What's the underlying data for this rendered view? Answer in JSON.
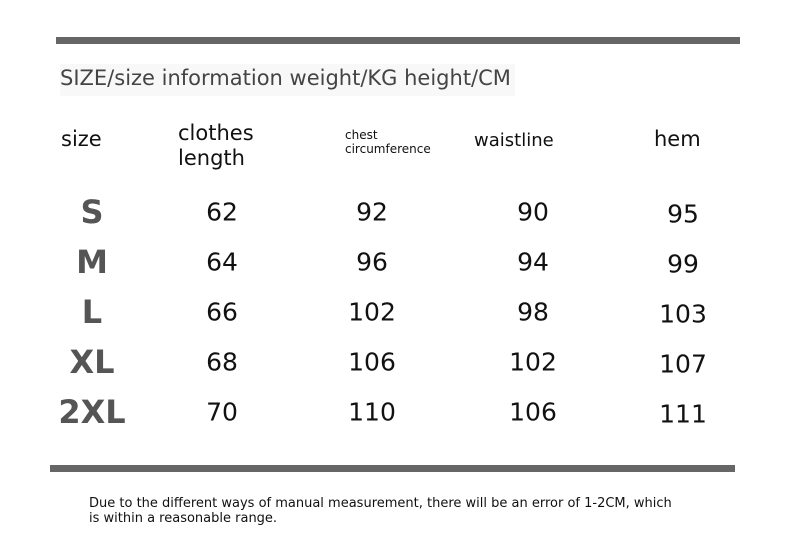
{
  "title": "SIZE/size information weight/KG height/CM",
  "headers": {
    "size": "size",
    "length_1": "clothes",
    "length_2": "length",
    "chest_1": "chest",
    "chest_2": "circumference",
    "waist": "waistline",
    "hem": "hem"
  },
  "rows": [
    {
      "size": "S",
      "length": "62",
      "chest": "92",
      "waist": "90",
      "hem": "95"
    },
    {
      "size": "M",
      "length": "64",
      "chest": "96",
      "waist": "94",
      "hem": "99"
    },
    {
      "size": "L",
      "length": "66",
      "chest": "102",
      "waist": "98",
      "hem": "103"
    },
    {
      "size": "XL",
      "length": "68",
      "chest": "106",
      "waist": "102",
      "hem": "107"
    },
    {
      "size": "2XL",
      "length": "70",
      "chest": "110",
      "waist": "106",
      "hem": "111"
    }
  ],
  "note_1": "Due to the different ways of manual measurement, there will be an error of 1-2CM, which",
  "note_2": "is within a reasonable range."
}
